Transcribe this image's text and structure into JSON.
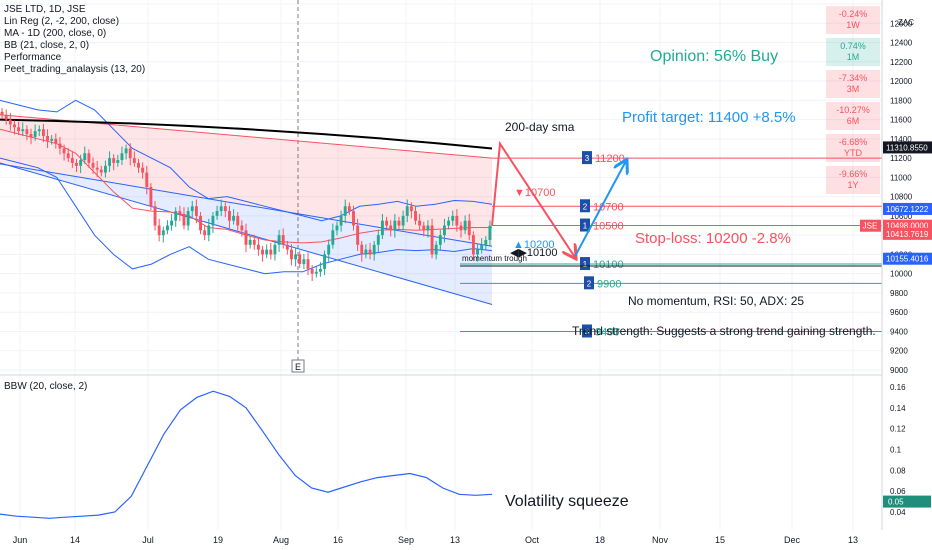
{
  "legend": {
    "symbol": "JSE LTD, 1D, JSE",
    "indicators": [
      "Lin Reg (2, -2, 200, close)",
      "MA - 1D (200, close, 0)",
      "BB (21, close, 2, 0)",
      "Performance",
      "Peet_trading_analaysis (13, 20)"
    ],
    "bbw": "BBW (20, close, 2)"
  },
  "currency": "ZAC",
  "performance": [
    {
      "value": "-0.24%",
      "period": "1W",
      "color": "#f7525f"
    },
    {
      "value": "0.74%",
      "period": "1M",
      "color": "#22ab94"
    },
    {
      "value": "-7.34%",
      "period": "3M",
      "color": "#f7525f"
    },
    {
      "value": "-10.27%",
      "period": "6M",
      "color": "#f7525f"
    },
    {
      "value": "-6.68%",
      "period": "YTD",
      "color": "#f7525f"
    },
    {
      "value": "-9.66%",
      "period": "1Y",
      "color": "#f7525f"
    }
  ],
  "annotations": {
    "opinion": "Opinion: 56% Buy",
    "profit_target": "Profit target: 11400 +8.5%",
    "stop_loss": "Stop-loss: 10200 -2.8%",
    "sma_label": "200-day sma",
    "momentum": "No momentum, RSI: 50, ADX: 25",
    "trend": "Trend strength: Suggests a strong trend gaining strength.",
    "volatility": "Volatility squeeze",
    "momentum_trough": "momentum trough",
    "event_marker": "E"
  },
  "levels": [
    {
      "value": 11200,
      "label": "11200",
      "tag": "3",
      "color": "#f7525f"
    },
    {
      "value": 10700,
      "label": "10700",
      "tag": "2",
      "color": "#f7525f"
    },
    {
      "value": 10500,
      "label": "10500",
      "tag": "1",
      "color": "#f7525f"
    },
    {
      "value": 10100,
      "label": "10100",
      "tag": "1",
      "color": "#22ab94"
    },
    {
      "value": 9900,
      "label": "9900",
      "tag": "2",
      "color": "#22ab94"
    },
    {
      "value": 9400,
      "label": "9400",
      "tag": "3",
      "color": "#22ab94"
    }
  ],
  "signals": {
    "sell_label": "▼10700",
    "buy_label": "▲10200",
    "mid_label": "◀▶10100"
  },
  "price_badges": [
    {
      "value": 11310.855,
      "label": "11310.8550",
      "bg": "#131722"
    },
    {
      "value": 10672.1222,
      "label": "10672.1222",
      "bg": "#2962ff"
    },
    {
      "value": 10498.0,
      "label": "10498.0000",
      "bg": "#f7525f",
      "tag": "JSE"
    },
    {
      "value": 10413.7619,
      "label": "10413.7619",
      "bg": "#f7525f"
    },
    {
      "value": 10155.4016,
      "label": "10155.4016",
      "bg": "#2962ff"
    }
  ],
  "bbw_badge": "0.05",
  "colors": {
    "up": "#22ab94",
    "down": "#f7525f",
    "sma": "#000000",
    "bb": "#2962ff",
    "arrow_down": "#f7525f",
    "arrow_up": "#2196f3"
  },
  "chart_data": [
    {
      "type": "candlestick",
      "title": "JSE LTD, 1D, JSE",
      "ylim": [
        9000,
        12800
      ],
      "y_ticks": [
        9000,
        9200,
        9400,
        9600,
        9800,
        10000,
        10200,
        10400,
        10600,
        10800,
        11000,
        11200,
        11400,
        11600,
        11800,
        12000,
        12200,
        12400,
        12600,
        12800
      ],
      "x_ticks": [
        "Jun",
        "14",
        "Jul",
        "19",
        "Aug",
        "16",
        "Sep",
        "13",
        "Oct",
        "18",
        "Nov",
        "15",
        "Dec",
        "13"
      ],
      "close": [
        11650,
        11600,
        11550,
        11520,
        11480,
        11500,
        11450,
        11420,
        11480,
        11500,
        11430,
        11380,
        11400,
        11350,
        11300,
        11250,
        11200,
        11150,
        11120,
        11180,
        11250,
        11150,
        11100,
        11080,
        11050,
        11120,
        11200,
        11150,
        11180,
        11250,
        11300,
        11200,
        11150,
        11100,
        11050,
        10900,
        10700,
        10500,
        10400,
        10450,
        10500,
        10550,
        10650,
        10620,
        10500,
        10650,
        10700,
        10600,
        10450,
        10400,
        10500,
        10600,
        10650,
        10700,
        10650,
        10550,
        10600,
        10500,
        10450,
        10300,
        10350,
        10300,
        10250,
        10200,
        10250,
        10200,
        10300,
        10400,
        10300,
        10250,
        10150,
        10200,
        10100,
        10150,
        10050,
        10000,
        10020,
        10050,
        10200,
        10300,
        10450,
        10500,
        10600,
        10700,
        10650,
        10500,
        10300,
        10200,
        10250,
        10200,
        10300,
        10400,
        10550,
        10500,
        10450,
        10550,
        10500,
        10600,
        10700,
        10650,
        10550,
        10500,
        10450,
        10500,
        10200,
        10300,
        10400,
        10500,
        10550,
        10600,
        10500,
        10450,
        10550,
        10400,
        10200,
        10250,
        10300,
        10350,
        10498
      ],
      "sma200": [
        11600,
        11300
      ],
      "reg_upper": [
        11650,
        11200
      ],
      "reg_lower": [
        11150,
        9680
      ],
      "bb_upper": [
        11800,
        11750,
        11700,
        11680,
        11800,
        11700,
        11500,
        11300,
        11200,
        11100,
        10900,
        10780,
        10800,
        10750,
        10700,
        10650,
        10600,
        10550,
        10600,
        10700,
        10720,
        10750,
        10700,
        10720,
        10760,
        10750,
        10720
      ],
      "bb_lower": [
        11200,
        11150,
        11100,
        11000,
        10700,
        10400,
        10200,
        10050,
        10100,
        10200,
        10280,
        10150,
        10100,
        10050,
        10000,
        10020,
        10020,
        10100,
        10150,
        10200,
        10220,
        10250,
        10240,
        10250,
        10230,
        10260,
        10240
      ],
      "bb_mid": [
        11500,
        11450,
        11400,
        11350,
        11250,
        11050,
        10850,
        10680,
        10650,
        10640,
        10600,
        10480,
        10460,
        10400,
        10350,
        10330,
        10320,
        10330,
        10370,
        10420,
        10450,
        10460,
        10450,
        10460,
        10470,
        10480,
        10480
      ]
    },
    {
      "type": "line",
      "title": "BBW (20, close, 2)",
      "ylim": [
        0.03,
        0.17
      ],
      "y_ticks": [
        0.04,
        0.06,
        0.08,
        0.1,
        0.12,
        0.14,
        0.16
      ],
      "values": [
        0.038,
        0.036,
        0.035,
        0.034,
        0.035,
        0.036,
        0.037,
        0.04,
        0.055,
        0.085,
        0.115,
        0.138,
        0.15,
        0.156,
        0.151,
        0.14,
        0.118,
        0.095,
        0.075,
        0.063,
        0.059,
        0.064,
        0.069,
        0.073,
        0.075,
        0.077,
        0.073,
        0.063,
        0.057,
        0.056,
        0.057
      ]
    }
  ]
}
